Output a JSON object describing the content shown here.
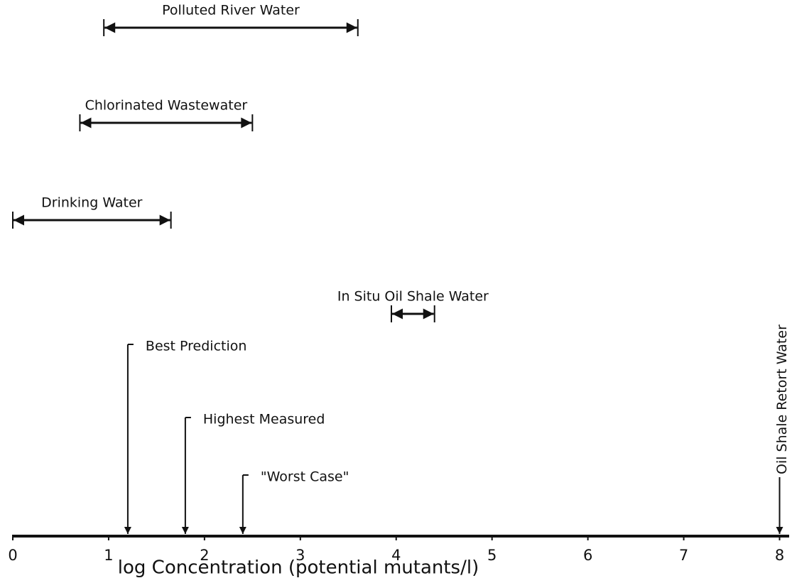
{
  "chart_data": {
    "type": "range",
    "xlabel": "log Concentration (potential mutants/l)",
    "xlim": [
      0,
      8.1
    ],
    "xticks": [
      0,
      1,
      2,
      3,
      4,
      5,
      6,
      7,
      8
    ],
    "color": "#111111",
    "ranges": [
      {
        "name": "Polluted River Water",
        "start": 0.95,
        "end": 3.6
      },
      {
        "name": "Chlorinated Wastewater",
        "start": 0.7,
        "end": 2.5
      },
      {
        "name": "Drinking Water",
        "start": 0,
        "end": 1.65
      },
      {
        "name": "In Situ Oil Shale Water",
        "start": 3.95,
        "end": 4.4
      }
    ],
    "markers": [
      {
        "name": "Best Prediction",
        "value": 1.2
      },
      {
        "name": "Highest Measured",
        "value": 1.8
      },
      {
        "name": "\"Worst Case\"",
        "value": 2.4
      },
      {
        "name": "Oil Shale Retort Water",
        "value": 8.0
      }
    ]
  }
}
